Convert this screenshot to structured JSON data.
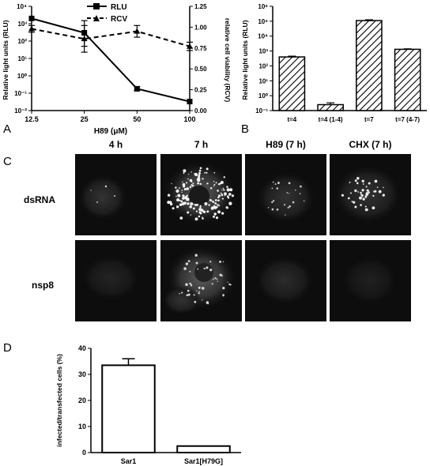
{
  "panel_labels": {
    "a": "A",
    "b": "B",
    "c": "C",
    "d": "D"
  },
  "chart_data": [
    {
      "type": "line",
      "panel": "A",
      "xlabel": "H89 (μM)",
      "ylabel_left": "Relative light units (RLU)",
      "ylabel_right": "relative cell viability (RCV)",
      "x": [
        12.5,
        25,
        50,
        100
      ],
      "x_tick_labels": [
        "12.5",
        "25",
        "50",
        "100"
      ],
      "y_left_scale": "log",
      "y_left_ticks": [
        "10⁻²",
        "10⁻¹",
        "10⁰",
        "10¹",
        "10²",
        "10³",
        "10⁴"
      ],
      "y_left_exponents": [
        -2,
        -1,
        0,
        1,
        2,
        3,
        4
      ],
      "ylim_left": [
        0.01,
        10000
      ],
      "y_right_ticks": [
        "0.00",
        "0.25",
        "0.50",
        "0.75",
        "1.00",
        "1.25"
      ],
      "ylim_right": [
        0,
        1.25
      ],
      "series": [
        {
          "name": "RLU",
          "axis": "left",
          "style": "solid",
          "marker": "square",
          "values": [
            2000,
            300,
            0.18,
            0.033
          ],
          "err_low": [
            null,
            50,
            0.14,
            null
          ],
          "err_high": [
            null,
            1500,
            0.24,
            null
          ]
        },
        {
          "name": "RCV",
          "axis": "right",
          "style": "dashed",
          "marker": "triangle",
          "values": [
            0.98,
            0.86,
            0.95,
            0.77
          ],
          "err": [
            0.04,
            0.16,
            0.07,
            0.05
          ]
        }
      ],
      "legend_position": "top"
    },
    {
      "type": "bar",
      "panel": "B",
      "ylabel": "Relative light units (RLU)",
      "y_scale": "log",
      "y_ticks": [
        "10⁻¹",
        "10⁰",
        "10¹",
        "10²",
        "10³",
        "10⁴",
        "10⁵",
        "10⁶"
      ],
      "y_exponents": [
        -1,
        0,
        1,
        2,
        3,
        4,
        5,
        6
      ],
      "ylim": [
        0.1,
        1000000
      ],
      "categories": [
        "t=4",
        "t=4 (1-4)",
        "t=7",
        "t=7 (4-7)"
      ],
      "values": [
        400,
        0.25,
        110000,
        1300
      ],
      "err_high": [
        450,
        0.33,
        125000,
        1400
      ],
      "fill": "hatched"
    },
    {
      "type": "bar",
      "panel": "D",
      "ylabel": "infected/transfected cells (%)",
      "y_ticks": [
        "0",
        "10",
        "20",
        "30",
        "40"
      ],
      "ylim": [
        0,
        40
      ],
      "categories": [
        "Sar1",
        "Sar1[H79G]"
      ],
      "values": [
        33.5,
        2.5
      ],
      "err_high": [
        36,
        null
      ],
      "fill": "white"
    }
  ],
  "microscopy": {
    "column_headers": [
      "4 h",
      "7 h",
      "H89 (7 h)",
      "CHX (7 h)"
    ],
    "row_labels": [
      "dsRNA",
      "nsp8"
    ]
  }
}
